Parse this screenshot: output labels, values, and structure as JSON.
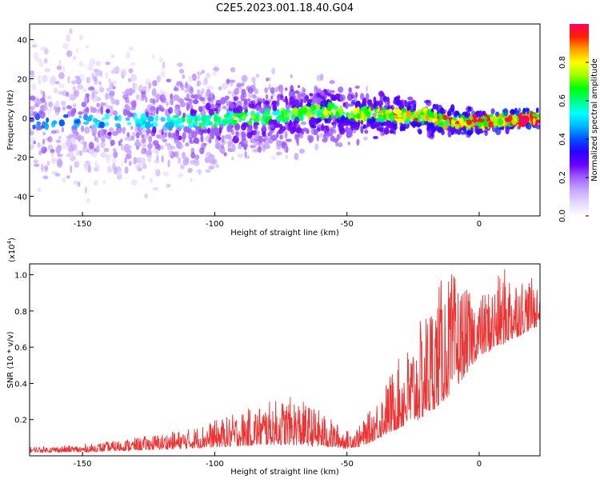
{
  "title": "C2E5.2023.001.18.40.G04",
  "chart_data": [
    {
      "type": "heatmap",
      "xlabel": "Height of straight line (km)",
      "ylabel": "Frequency (Hz)",
      "xlim": [
        -170,
        23
      ],
      "ylim": [
        -50,
        48
      ],
      "xticks": [
        -150,
        -100,
        -50,
        0
      ],
      "yticks": [
        -40,
        -20,
        0,
        20,
        40
      ],
      "grid": false,
      "ridge": {
        "x": [
          -170,
          -140,
          -120,
          -100,
          -80,
          -60,
          -55,
          -50,
          -40,
          -30,
          -20,
          -15,
          -10,
          0,
          10,
          23
        ],
        "freq_hz": [
          -2,
          -2,
          -2,
          -1,
          1,
          3,
          4,
          2,
          2,
          1,
          1,
          -1,
          -2,
          -2,
          -1,
          0
        ]
      },
      "colorbar": {
        "label": "Normalized spectral amplitude",
        "ticks": [
          0.0,
          0.2,
          0.4,
          0.6,
          0.8
        ],
        "range": [
          0,
          1
        ],
        "colors": [
          "#ffffff",
          "#e6d8ff",
          "#c8a8ff",
          "#a060ff",
          "#6a00ff",
          "#2a00ff",
          "#0050ff",
          "#00b4ff",
          "#00ffff",
          "#00ff80",
          "#00ff00",
          "#a0ff00",
          "#ffff00",
          "#ffa000",
          "#ff2000",
          "#ff0060"
        ]
      }
    },
    {
      "type": "line",
      "xlabel": "Height of straight line (km)",
      "ylabel": "SNR (10 * v/v)",
      "multiplier": "(x10",
      "multiplier_exp": "4",
      "multiplier_close": ")",
      "xlim": [
        -170,
        23
      ],
      "ylim": [
        0,
        1.06
      ],
      "xticks": [
        -150,
        -100,
        -50,
        0
      ],
      "yticks": [
        0.2,
        0.4,
        0.6,
        0.8,
        1.0
      ],
      "ytick_labels": [
        "0.2",
        "0.4",
        "0.6",
        "0.8",
        "1.0"
      ],
      "color": "#ee3333",
      "envelope": {
        "x": [
          -170,
          -150,
          -130,
          -110,
          -95,
          -80,
          -70,
          -60,
          -50,
          -45,
          -40,
          -35,
          -30,
          -25,
          -20,
          -15,
          -10,
          -5,
          0,
          5,
          10,
          15,
          20,
          23
        ],
        "base": [
          0.02,
          0.02,
          0.03,
          0.04,
          0.05,
          0.06,
          0.06,
          0.05,
          0.04,
          0.05,
          0.08,
          0.12,
          0.15,
          0.18,
          0.22,
          0.28,
          0.35,
          0.45,
          0.55,
          0.58,
          0.62,
          0.66,
          0.7,
          0.72
        ],
        "peak": [
          0.05,
          0.06,
          0.1,
          0.15,
          0.22,
          0.3,
          0.33,
          0.25,
          0.14,
          0.17,
          0.28,
          0.42,
          0.55,
          0.65,
          0.82,
          0.97,
          1.02,
          0.92,
          0.88,
          0.95,
          1.05,
          1.0,
          0.98,
          0.96
        ]
      }
    }
  ]
}
